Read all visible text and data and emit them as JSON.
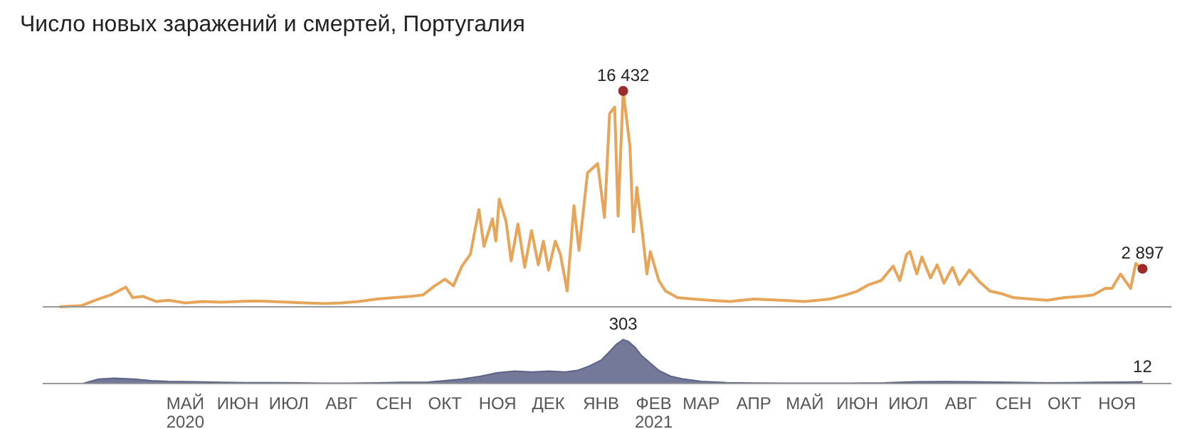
{
  "chart_data": [
    {
      "type": "line",
      "title": "Число новых заражений и смертей, Португалия",
      "xlim": [
        "2020-02-21",
        "2021-12-17"
      ],
      "tick_labels": false,
      "grid": false,
      "legend": false,
      "marker": "none",
      "x": [
        "2020-03-02",
        "2020-03-15",
        "2020-03-25",
        "2020-04-01",
        "2020-04-10",
        "2020-04-14",
        "2020-04-20",
        "2020-04-28",
        "2020-05-05",
        "2020-05-15",
        "2020-05-25",
        "2020-06-05",
        "2020-06-15",
        "2020-06-25",
        "2020-07-05",
        "2020-07-15",
        "2020-07-25",
        "2020-08-05",
        "2020-08-15",
        "2020-08-25",
        "2020-09-05",
        "2020-09-15",
        "2020-09-25",
        "2020-10-02",
        "2020-10-09",
        "2020-10-15",
        "2020-10-20",
        "2020-10-25",
        "2020-10-30",
        "2020-11-04",
        "2020-11-07",
        "2020-11-12",
        "2020-11-14",
        "2020-11-16",
        "2020-11-20",
        "2020-11-23",
        "2020-11-27",
        "2020-12-01",
        "2020-12-05",
        "2020-12-09",
        "2020-12-12",
        "2020-12-15",
        "2020-12-19",
        "2020-12-22",
        "2020-12-26",
        "2020-12-30",
        "2021-01-02",
        "2021-01-07",
        "2021-01-13",
        "2021-01-17",
        "2021-01-20",
        "2021-01-23",
        "2021-01-25",
        "2021-01-28",
        "2021-02-01",
        "2021-02-03",
        "2021-02-05",
        "2021-02-08",
        "2021-02-11",
        "2021-02-13",
        "2021-02-18",
        "2021-02-22",
        "2021-03-01",
        "2021-03-10",
        "2021-03-20",
        "2021-04-01",
        "2021-04-15",
        "2021-05-01",
        "2021-05-15",
        "2021-05-30",
        "2021-06-08",
        "2021-06-15",
        "2021-06-22",
        "2021-06-29",
        "2021-07-06",
        "2021-07-10",
        "2021-07-14",
        "2021-07-16",
        "2021-07-20",
        "2021-07-23",
        "2021-07-28",
        "2021-08-01",
        "2021-08-05",
        "2021-08-10",
        "2021-08-14",
        "2021-08-20",
        "2021-08-26",
        "2021-09-01",
        "2021-09-08",
        "2021-09-15",
        "2021-09-25",
        "2021-10-05",
        "2021-10-15",
        "2021-10-25",
        "2021-11-01",
        "2021-11-08",
        "2021-11-12",
        "2021-11-17",
        "2021-11-23",
        "2021-11-26",
        "2021-11-30"
      ],
      "series": [
        {
          "color": "#e6a558",
          "line_style": "solid",
          "values": [
            0,
            100,
            600,
            900,
            1500,
            700,
            800,
            400,
            500,
            300,
            400,
            350,
            400,
            450,
            400,
            350,
            300,
            250,
            300,
            400,
            600,
            700,
            800,
            900,
            1600,
            2100,
            1600,
            3100,
            4000,
            7400,
            4600,
            6700,
            5000,
            8200,
            6500,
            3500,
            6300,
            3000,
            5800,
            3200,
            5000,
            2800,
            5000,
            4000,
            1200,
            7700,
            4300,
            10200,
            10900,
            6800,
            14700,
            15200,
            6900,
            16432,
            12200,
            5700,
            9100,
            6000,
            2500,
            4200,
            2000,
            1200,
            700,
            600,
            500,
            400,
            600,
            500,
            400,
            600,
            900,
            1200,
            1700,
            2000,
            3100,
            2000,
            4000,
            4200,
            2500,
            3800,
            2200,
            3200,
            1800,
            3000,
            1700,
            2800,
            1900,
            1200,
            1000,
            700,
            600,
            500,
            700,
            800,
            900,
            1400,
            1400,
            2500,
            1400,
            3300,
            2897
          ],
          "value_labels": [
            null,
            null,
            null,
            null,
            null,
            null,
            null,
            null,
            null,
            null,
            null,
            null,
            null,
            null,
            null,
            null,
            null,
            null,
            null,
            null,
            null,
            null,
            null,
            null,
            null,
            null,
            null,
            null,
            null,
            null,
            null,
            null,
            null,
            null,
            null,
            null,
            null,
            null,
            null,
            null,
            null,
            null,
            null,
            null,
            null,
            null,
            null,
            null,
            null,
            null,
            null,
            null,
            null,
            "16 432",
            null,
            null,
            null,
            null,
            null,
            null,
            null,
            null,
            null,
            null,
            null,
            null,
            null,
            null,
            null,
            null,
            null,
            null,
            null,
            null,
            null,
            null,
            null,
            null,
            null,
            null,
            null,
            null,
            null,
            null,
            null,
            null,
            null,
            null,
            null,
            null,
            null,
            null,
            null,
            null,
            null,
            null,
            null,
            null,
            null,
            null,
            "2 897"
          ]
        }
      ]
    },
    {
      "type": "area",
      "xlim": [
        "2020-02-21",
        "2021-12-17"
      ],
      "tick_labels": "x",
      "grid": false,
      "legend": false,
      "xticks": [
        {
          "value": "2020-05-15",
          "label": "МАЙ\n2020"
        },
        {
          "value": "2020-06-15",
          "label": "ИЮН"
        },
        {
          "value": "2020-07-15",
          "label": "ИЮЛ"
        },
        {
          "value": "2020-08-15",
          "label": "АВГ"
        },
        {
          "value": "2020-09-15",
          "label": "СЕН"
        },
        {
          "value": "2020-10-15",
          "label": "ОКТ"
        },
        {
          "value": "2020-11-15",
          "label": "НОЯ"
        },
        {
          "value": "2020-12-15",
          "label": "ДЕК"
        },
        {
          "value": "2021-01-15",
          "label": "ЯНВ"
        },
        {
          "value": "2021-02-15",
          "label": "ФЕВ\n2021"
        },
        {
          "value": "2021-03-15",
          "label": "МАР"
        },
        {
          "value": "2021-04-15",
          "label": "АПР"
        },
        {
          "value": "2021-05-15",
          "label": "МАЙ"
        },
        {
          "value": "2021-06-15",
          "label": "ИЮН"
        },
        {
          "value": "2021-07-15",
          "label": "ИЮЛ"
        },
        {
          "value": "2021-08-15",
          "label": "АВГ"
        },
        {
          "value": "2021-09-15",
          "label": "СЕН"
        },
        {
          "value": "2021-10-15",
          "label": "ОКТ"
        },
        {
          "value": "2021-11-15",
          "label": "НОЯ"
        }
      ],
      "x": [
        "2020-03-16",
        "2020-03-25",
        "2020-04-03",
        "2020-04-15",
        "2020-04-25",
        "2020-05-05",
        "2020-05-20",
        "2020-06-05",
        "2020-06-20",
        "2020-07-05",
        "2020-07-20",
        "2020-08-05",
        "2020-08-20",
        "2020-09-05",
        "2020-09-20",
        "2020-10-05",
        "2020-10-15",
        "2020-10-25",
        "2020-11-05",
        "2020-11-15",
        "2020-11-25",
        "2020-12-05",
        "2020-12-15",
        "2020-12-25",
        "2021-01-01",
        "2021-01-08",
        "2021-01-15",
        "2021-01-20",
        "2021-01-24",
        "2021-01-28",
        "2021-01-31",
        "2021-02-04",
        "2021-02-08",
        "2021-02-12",
        "2021-02-18",
        "2021-02-25",
        "2021-03-05",
        "2021-03-15",
        "2021-03-30",
        "2021-04-15",
        "2021-05-01",
        "2021-05-20",
        "2021-06-10",
        "2021-07-01",
        "2021-07-20",
        "2021-08-05",
        "2021-08-20",
        "2021-09-05",
        "2021-09-20",
        "2021-10-05",
        "2021-10-20",
        "2021-11-05",
        "2021-11-20",
        "2021-11-30"
      ],
      "series": [
        {
          "color": "#5d6287",
          "values": [
            1,
            30,
            37,
            30,
            20,
            15,
            12,
            8,
            6,
            6,
            5,
            3,
            3,
            5,
            8,
            10,
            20,
            30,
            50,
            75,
            85,
            80,
            85,
            80,
            90,
            120,
            160,
            220,
            270,
            303,
            290,
            250,
            190,
            150,
            90,
            50,
            30,
            15,
            6,
            4,
            3,
            2,
            3,
            5,
            12,
            13,
            12,
            10,
            7,
            5,
            6,
            8,
            10,
            12
          ],
          "value_labels": [
            null,
            null,
            null,
            null,
            null,
            null,
            null,
            null,
            null,
            null,
            null,
            null,
            null,
            null,
            null,
            null,
            null,
            null,
            null,
            null,
            null,
            null,
            null,
            null,
            null,
            null,
            null,
            null,
            null,
            "303",
            null,
            null,
            null,
            null,
            null,
            null,
            null,
            null,
            null,
            null,
            null,
            null,
            null,
            null,
            null,
            null,
            null,
            null,
            null,
            null,
            null,
            null,
            null,
            "12"
          ]
        }
      ]
    }
  ]
}
